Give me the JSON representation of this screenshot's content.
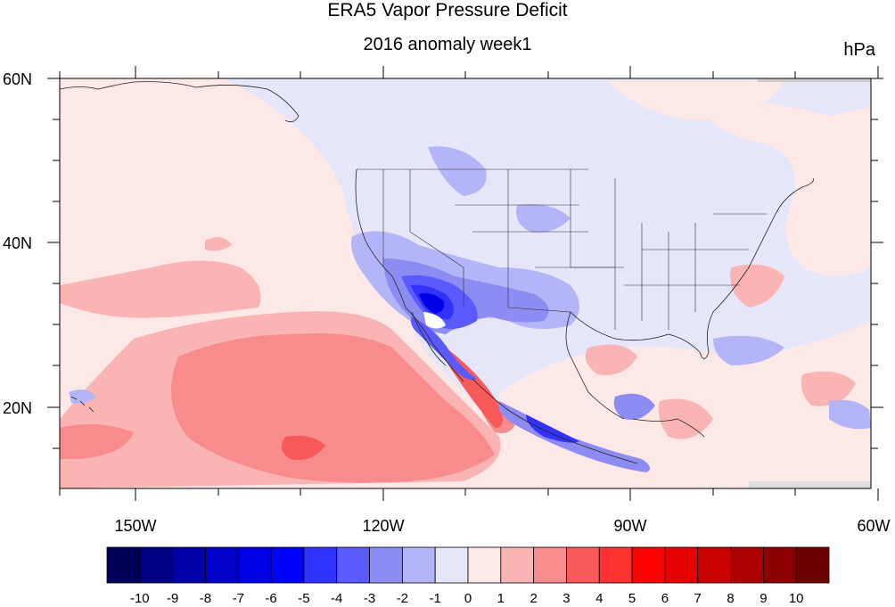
{
  "title": "ERA5 Vapor Pressure Deficit",
  "subtitle": "2016 anomaly week1",
  "units": "hPa",
  "map": {
    "lat_labels": [
      "60N",
      "40N",
      "20N"
    ],
    "lon_labels": [
      "150W",
      "120W",
      "90W",
      "60W"
    ]
  },
  "colorbar": {
    "labels": [
      "-10",
      "-9",
      "-8",
      "-7",
      "-6",
      "-5",
      "-4",
      "-3",
      "-2",
      "-1",
      "0",
      "1",
      "2",
      "3",
      "4",
      "5",
      "6",
      "7",
      "8",
      "9",
      "10"
    ],
    "colors": [
      "#00005a",
      "#000082",
      "#0000a8",
      "#0000c8",
      "#0000e6",
      "#0000ff",
      "#3232ff",
      "#5a5aff",
      "#8c8cf2",
      "#b4b4f8",
      "#e6e6fa",
      "#fde8e8",
      "#fab4b4",
      "#f88c8c",
      "#f85a5a",
      "#ff3232",
      "#ff0000",
      "#e60000",
      "#c80000",
      "#aa0000",
      "#8c0000",
      "#6e0000"
    ]
  }
}
